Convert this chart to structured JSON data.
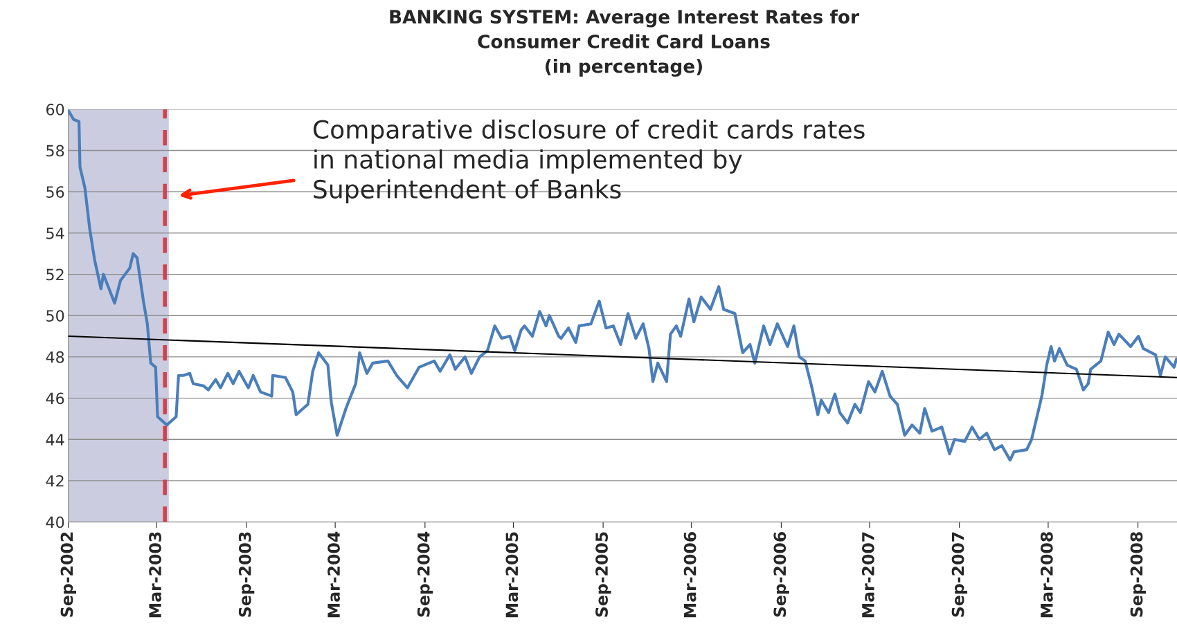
{
  "chart_data": {
    "type": "line",
    "title": "BANKING SYSTEM: Average Interest Rates for\nConsumer Credit Card Loans\n(in percentage)",
    "series": [
      {
        "color": "#4a7ebb",
        "x": [
          "2002-09-02",
          "2002-09-12",
          "2002-09-23",
          "2002-09-25",
          "2002-10-05",
          "2002-10-15",
          "2002-10-25",
          "2002-11-07",
          "2002-11-12",
          "2002-12-05",
          "2002-12-17",
          "2003-01-05",
          "2003-01-12",
          "2003-01-20",
          "2003-02-02",
          "2003-02-10",
          "2003-02-17",
          "2003-02-27",
          "2003-03-03",
          "2003-03-22",
          "2003-04-10",
          "2003-04-15",
          "2003-04-25",
          "2003-05-08",
          "2003-05-15",
          "2003-06-05",
          "2003-06-15",
          "2003-06-30",
          "2003-07-10",
          "2003-07-25",
          "2003-08-05",
          "2003-08-17",
          "2003-09-05",
          "2003-09-15",
          "2003-09-30",
          "2003-10-23",
          "2003-10-25",
          "2003-11-20",
          "2003-12-05",
          "2003-12-12",
          "2004-01-05",
          "2004-01-15",
          "2004-01-27",
          "2004-02-15",
          "2004-02-22",
          "2004-03-05",
          "2004-03-23",
          "2004-04-12",
          "2004-04-20",
          "2004-05-05",
          "2004-05-17",
          "2004-06-17",
          "2004-07-05",
          "2004-07-27",
          "2004-08-20",
          "2004-09-20",
          "2004-10-02",
          "2004-10-22",
          "2004-11-02",
          "2004-11-22",
          "2004-12-05",
          "2004-12-22",
          "2005-01-07",
          "2005-01-22",
          "2005-02-05",
          "2005-02-22",
          "2005-03-04",
          "2005-03-17",
          "2005-03-24",
          "2005-04-09",
          "2005-04-24",
          "2005-05-07",
          "2005-05-14",
          "2005-06-02",
          "2005-06-07",
          "2005-06-22",
          "2005-07-07",
          "2005-07-14",
          "2005-08-07",
          "2005-08-24",
          "2005-09-07",
          "2005-09-22",
          "2005-10-07",
          "2005-10-22",
          "2005-11-07",
          "2005-11-22",
          "2005-12-04",
          "2005-12-12",
          "2005-12-22",
          "2006-01-09",
          "2006-01-17",
          "2006-01-29",
          "2006-02-07",
          "2006-02-24",
          "2006-03-06",
          "2006-03-21",
          "2006-04-09",
          "2006-04-26",
          "2006-05-06",
          "2006-05-29",
          "2006-06-14",
          "2006-06-29",
          "2006-07-09",
          "2006-07-27",
          "2006-08-09",
          "2006-08-24",
          "2006-09-14",
          "2006-09-27",
          "2006-10-08",
          "2006-10-20",
          "2006-11-02",
          "2006-11-15",
          "2006-11-22",
          "2006-12-07",
          "2006-12-20",
          "2006-12-30",
          "2007-01-15",
          "2007-01-30",
          "2007-02-10",
          "2007-02-27",
          "2007-03-12",
          "2007-03-27",
          "2007-04-12",
          "2007-04-27",
          "2007-05-12",
          "2007-05-27",
          "2007-06-12",
          "2007-06-22",
          "2007-07-07",
          "2007-07-27",
          "2007-08-12",
          "2007-08-22",
          "2007-09-12",
          "2007-09-27",
          "2007-10-12",
          "2007-10-27",
          "2007-11-12",
          "2007-11-27",
          "2007-12-14",
          "2007-12-22",
          "2008-01-17",
          "2008-01-27",
          "2008-02-07",
          "2008-02-17",
          "2008-02-27",
          "2008-03-07",
          "2008-03-14",
          "2008-03-24",
          "2008-04-09",
          "2008-04-28",
          "2008-05-12",
          "2008-05-22",
          "2008-05-27",
          "2008-06-17",
          "2008-07-02",
          "2008-07-14",
          "2008-07-24",
          "2008-08-17",
          "2008-09-02",
          "2008-09-12",
          "2008-10-07",
          "2008-10-17",
          "2008-10-27",
          "2008-11-14",
          "2008-11-19"
        ],
        "values": [
          59.9,
          59.5,
          59.4,
          57.2,
          56.2,
          54.2,
          52.7,
          51.3,
          52.0,
          50.6,
          51.7,
          52.3,
          53.0,
          52.8,
          50.7,
          49.6,
          47.7,
          47.5,
          45.1,
          44.7,
          45.1,
          47.1,
          47.1,
          47.2,
          46.7,
          46.6,
          46.4,
          46.9,
          46.5,
          47.2,
          46.7,
          47.3,
          46.5,
          47.1,
          46.3,
          46.1,
          47.1,
          47.0,
          46.3,
          45.2,
          45.7,
          47.3,
          48.2,
          47.6,
          45.8,
          44.2,
          45.5,
          46.7,
          48.2,
          47.2,
          47.7,
          47.8,
          47.1,
          46.5,
          47.5,
          47.8,
          47.3,
          48.1,
          47.4,
          48.0,
          47.2,
          48.0,
          48.3,
          49.5,
          48.9,
          49.0,
          48.3,
          49.3,
          49.5,
          49.0,
          50.2,
          49.5,
          50.0,
          49.0,
          48.9,
          49.4,
          48.7,
          49.5,
          49.6,
          50.7,
          49.4,
          49.5,
          48.6,
          50.1,
          48.9,
          49.6,
          48.4,
          46.8,
          47.7,
          46.8,
          49.1,
          49.5,
          49.0,
          50.8,
          49.7,
          50.9,
          50.3,
          51.4,
          50.3,
          50.1,
          48.2,
          48.6,
          47.7,
          49.5,
          48.6,
          49.6,
          48.5,
          49.5,
          48.0,
          47.8,
          46.6,
          45.2,
          45.9,
          45.3,
          46.2,
          45.3,
          44.8,
          45.7,
          45.3,
          46.8,
          46.3,
          47.3,
          46.1,
          45.7,
          44.2,
          44.7,
          44.3,
          45.5,
          44.4,
          44.6,
          43.3,
          44.0,
          43.9,
          44.6,
          44.0,
          44.3,
          43.5,
          43.7,
          43.0,
          43.4,
          43.5,
          44.0,
          45.1,
          46.1,
          47.6,
          48.5,
          47.8,
          48.4,
          47.6,
          47.4,
          46.4,
          46.7,
          47.4,
          47.8,
          49.2,
          48.6,
          49.1,
          48.5,
          49.0,
          48.4,
          48.1,
          47.1,
          48.0,
          47.5,
          47.9
        ]
      },
      {
        "color": "#000000",
        "x": [
          "2002-09-01",
          "2008-11-20"
        ],
        "values": [
          49.0,
          47.0
        ]
      }
    ],
    "xlim": [
      "2002-09-01",
      "2008-11-20"
    ],
    "xticks": [
      {
        "value": "2002-09-01",
        "label": "Sep-2002"
      },
      {
        "value": "2003-03-01",
        "label": "Mar-2003"
      },
      {
        "value": "2003-09-01",
        "label": "Sep-2003"
      },
      {
        "value": "2004-03-01",
        "label": "Mar-2004"
      },
      {
        "value": "2004-09-01",
        "label": "Sep-2004"
      },
      {
        "value": "2005-03-01",
        "label": "Mar-2005"
      },
      {
        "value": "2005-09-01",
        "label": "Sep-2005"
      },
      {
        "value": "2006-03-01",
        "label": "Mar-2006"
      },
      {
        "value": "2006-09-01",
        "label": "Sep-2006"
      },
      {
        "value": "2007-03-01",
        "label": "Mar-2007"
      },
      {
        "value": "2007-09-01",
        "label": "Sep-2007"
      },
      {
        "value": "2008-03-01",
        "label": "Mar-2008"
      },
      {
        "value": "2008-09-01",
        "label": "Sep-2008"
      }
    ],
    "ylim": [
      40,
      60
    ],
    "yticks": [
      40,
      42,
      44,
      46,
      48,
      50,
      52,
      54,
      56,
      58,
      60
    ],
    "grid": "y",
    "ref_lines": [
      {
        "axis": "x",
        "value": "2003-03-18",
        "color": "#d0424f",
        "line_style": "dashed"
      }
    ],
    "bands": [
      {
        "axis": "x",
        "from": "2002-09-01",
        "to": "2003-03-26",
        "color": "#cbcce0"
      }
    ],
    "annotations": [
      "Comparative disclosure of credit cards rates\nin national media implemented by\nSuperintendent of Banks"
    ]
  }
}
